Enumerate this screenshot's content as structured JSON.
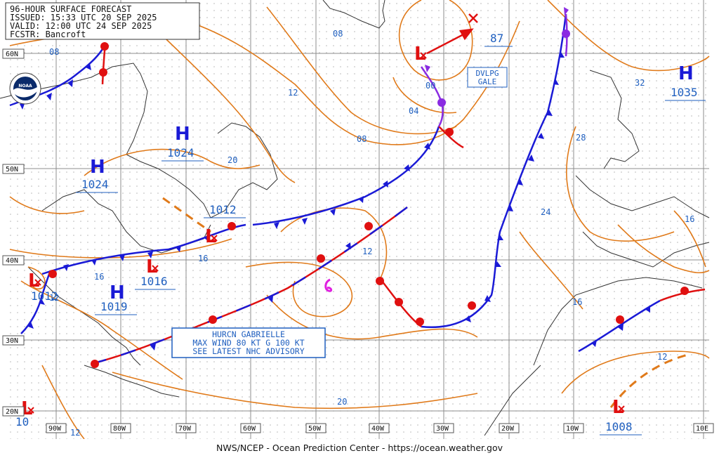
{
  "header": {
    "line1": "96-HOUR SURFACE FORECAST",
    "line2": "ISSUED: 15:33 UTC 20 SEP 2025",
    "line3": "VALID:  12:00 UTC 24 SEP 2025",
    "line4": "FCSTR:  Bancroft"
  },
  "footer": "NWS/NCEP - Ocean Prediction Center - https://ocean.weather.gov",
  "latitude_labels": [
    "60N",
    "50N",
    "40N",
    "30N",
    "20N"
  ],
  "longitude_labels": [
    "90W",
    "80W",
    "70W",
    "60W",
    "50W",
    "40W",
    "30W",
    "20W",
    "10W",
    "10E"
  ],
  "pressure_centers": [
    {
      "type": "H",
      "value": "1024"
    },
    {
      "type": "H",
      "value": "1024"
    },
    {
      "type": "H",
      "value": "1019"
    },
    {
      "type": "H",
      "value": "1035"
    },
    {
      "type": "L",
      "value": "1012"
    },
    {
      "type": "L",
      "value": "1016"
    },
    {
      "type": "L",
      "value": "1012"
    },
    {
      "type": "L",
      "value": "87"
    },
    {
      "type": "L",
      "value": "1008"
    },
    {
      "type": "L",
      "value": "10"
    }
  ],
  "isobar_labels": [
    "08",
    "12",
    "20",
    "16",
    "16",
    "12",
    "12",
    "00",
    "04",
    "08",
    "32",
    "28",
    "24",
    "16",
    "16",
    "20",
    "12",
    "12",
    "08"
  ],
  "boxes": {
    "gale": [
      "DVLPG",
      "GALE"
    ],
    "hurricane": [
      "HURCN GABRIELLE",
      "MAX WIND 80 KT G 100 KT",
      "SEE LATEST NHC ADVISORY"
    ]
  },
  "logo_text": "NOAA",
  "colors": {
    "isobar": "#e07a1a",
    "cold_front": "#1a1ad6",
    "warm_front": "#e01010",
    "occluded": "#8a2be2",
    "text_blue": "#1f5fbf",
    "grid": "#888888"
  }
}
